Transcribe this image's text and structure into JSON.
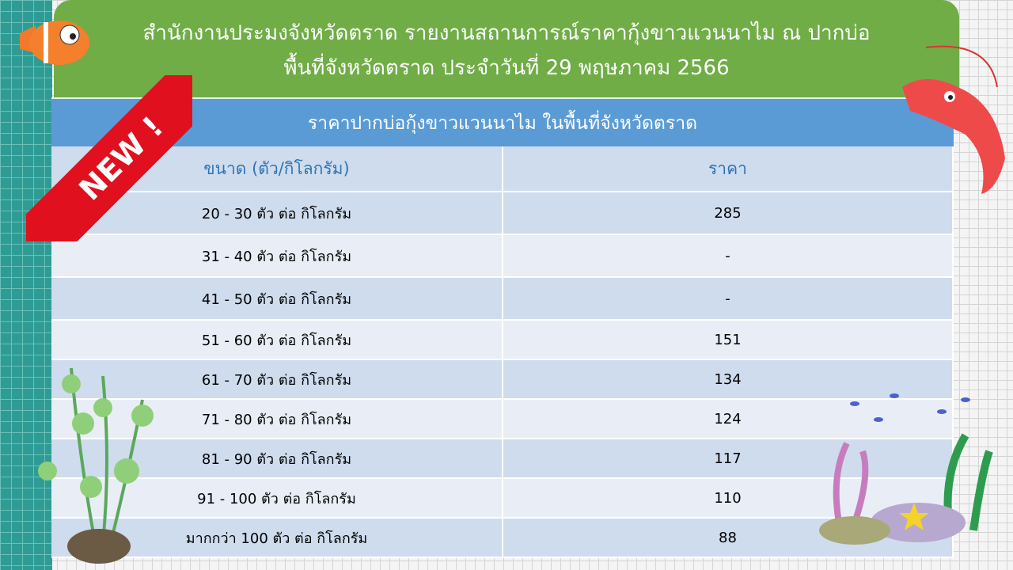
{
  "header": {
    "title_line1": "สำนักงานประมงจังหวัดตราด รายงานสถานการณ์ราคากุ้งขาวแวนนาไม ณ ปากบ่อ",
    "title_line2": "พื้นที่จังหวัดตราด ประจำวันที่ 29 พฤษภาคม 2566"
  },
  "subtitle": "ราคาปากบ่อกุ้งขาวแวนนาไม ในพื้นที่จังหวัดตราด",
  "badge": "NEW !",
  "table": {
    "headers": [
      "ขนาด (ตัว/กิโลกรัม)",
      "ราคา"
    ],
    "rows": [
      [
        "20 - 30 ตัว ต่อ กิโลกรัม",
        "285"
      ],
      [
        "31 - 40 ตัว ต่อ กิโลกรัม",
        "-"
      ],
      [
        "41 - 50 ตัว ต่อ กิโลกรัม",
        "-"
      ],
      [
        "51 - 60 ตัว ต่อ กิโลกรัม",
        "151"
      ],
      [
        "61 - 70 ตัว ต่อ กิโลกรัม",
        "134"
      ],
      [
        "71 - 80 ตัว ต่อ กิโลกรัม",
        "124"
      ],
      [
        "81 - 90 ตัว ต่อ กิโลกรัม",
        "117"
      ],
      [
        "91 - 100 ตัว ต่อ กิโลกรัม",
        "110"
      ],
      [
        "มากกว่า 100 ตัว ต่อ กิโลกรัม",
        "88"
      ]
    ]
  },
  "colors": {
    "header": "#70ad47",
    "subbar": "#5b9bd5",
    "heading_text": "#2e74b5",
    "ribbon": "#e0101e"
  }
}
